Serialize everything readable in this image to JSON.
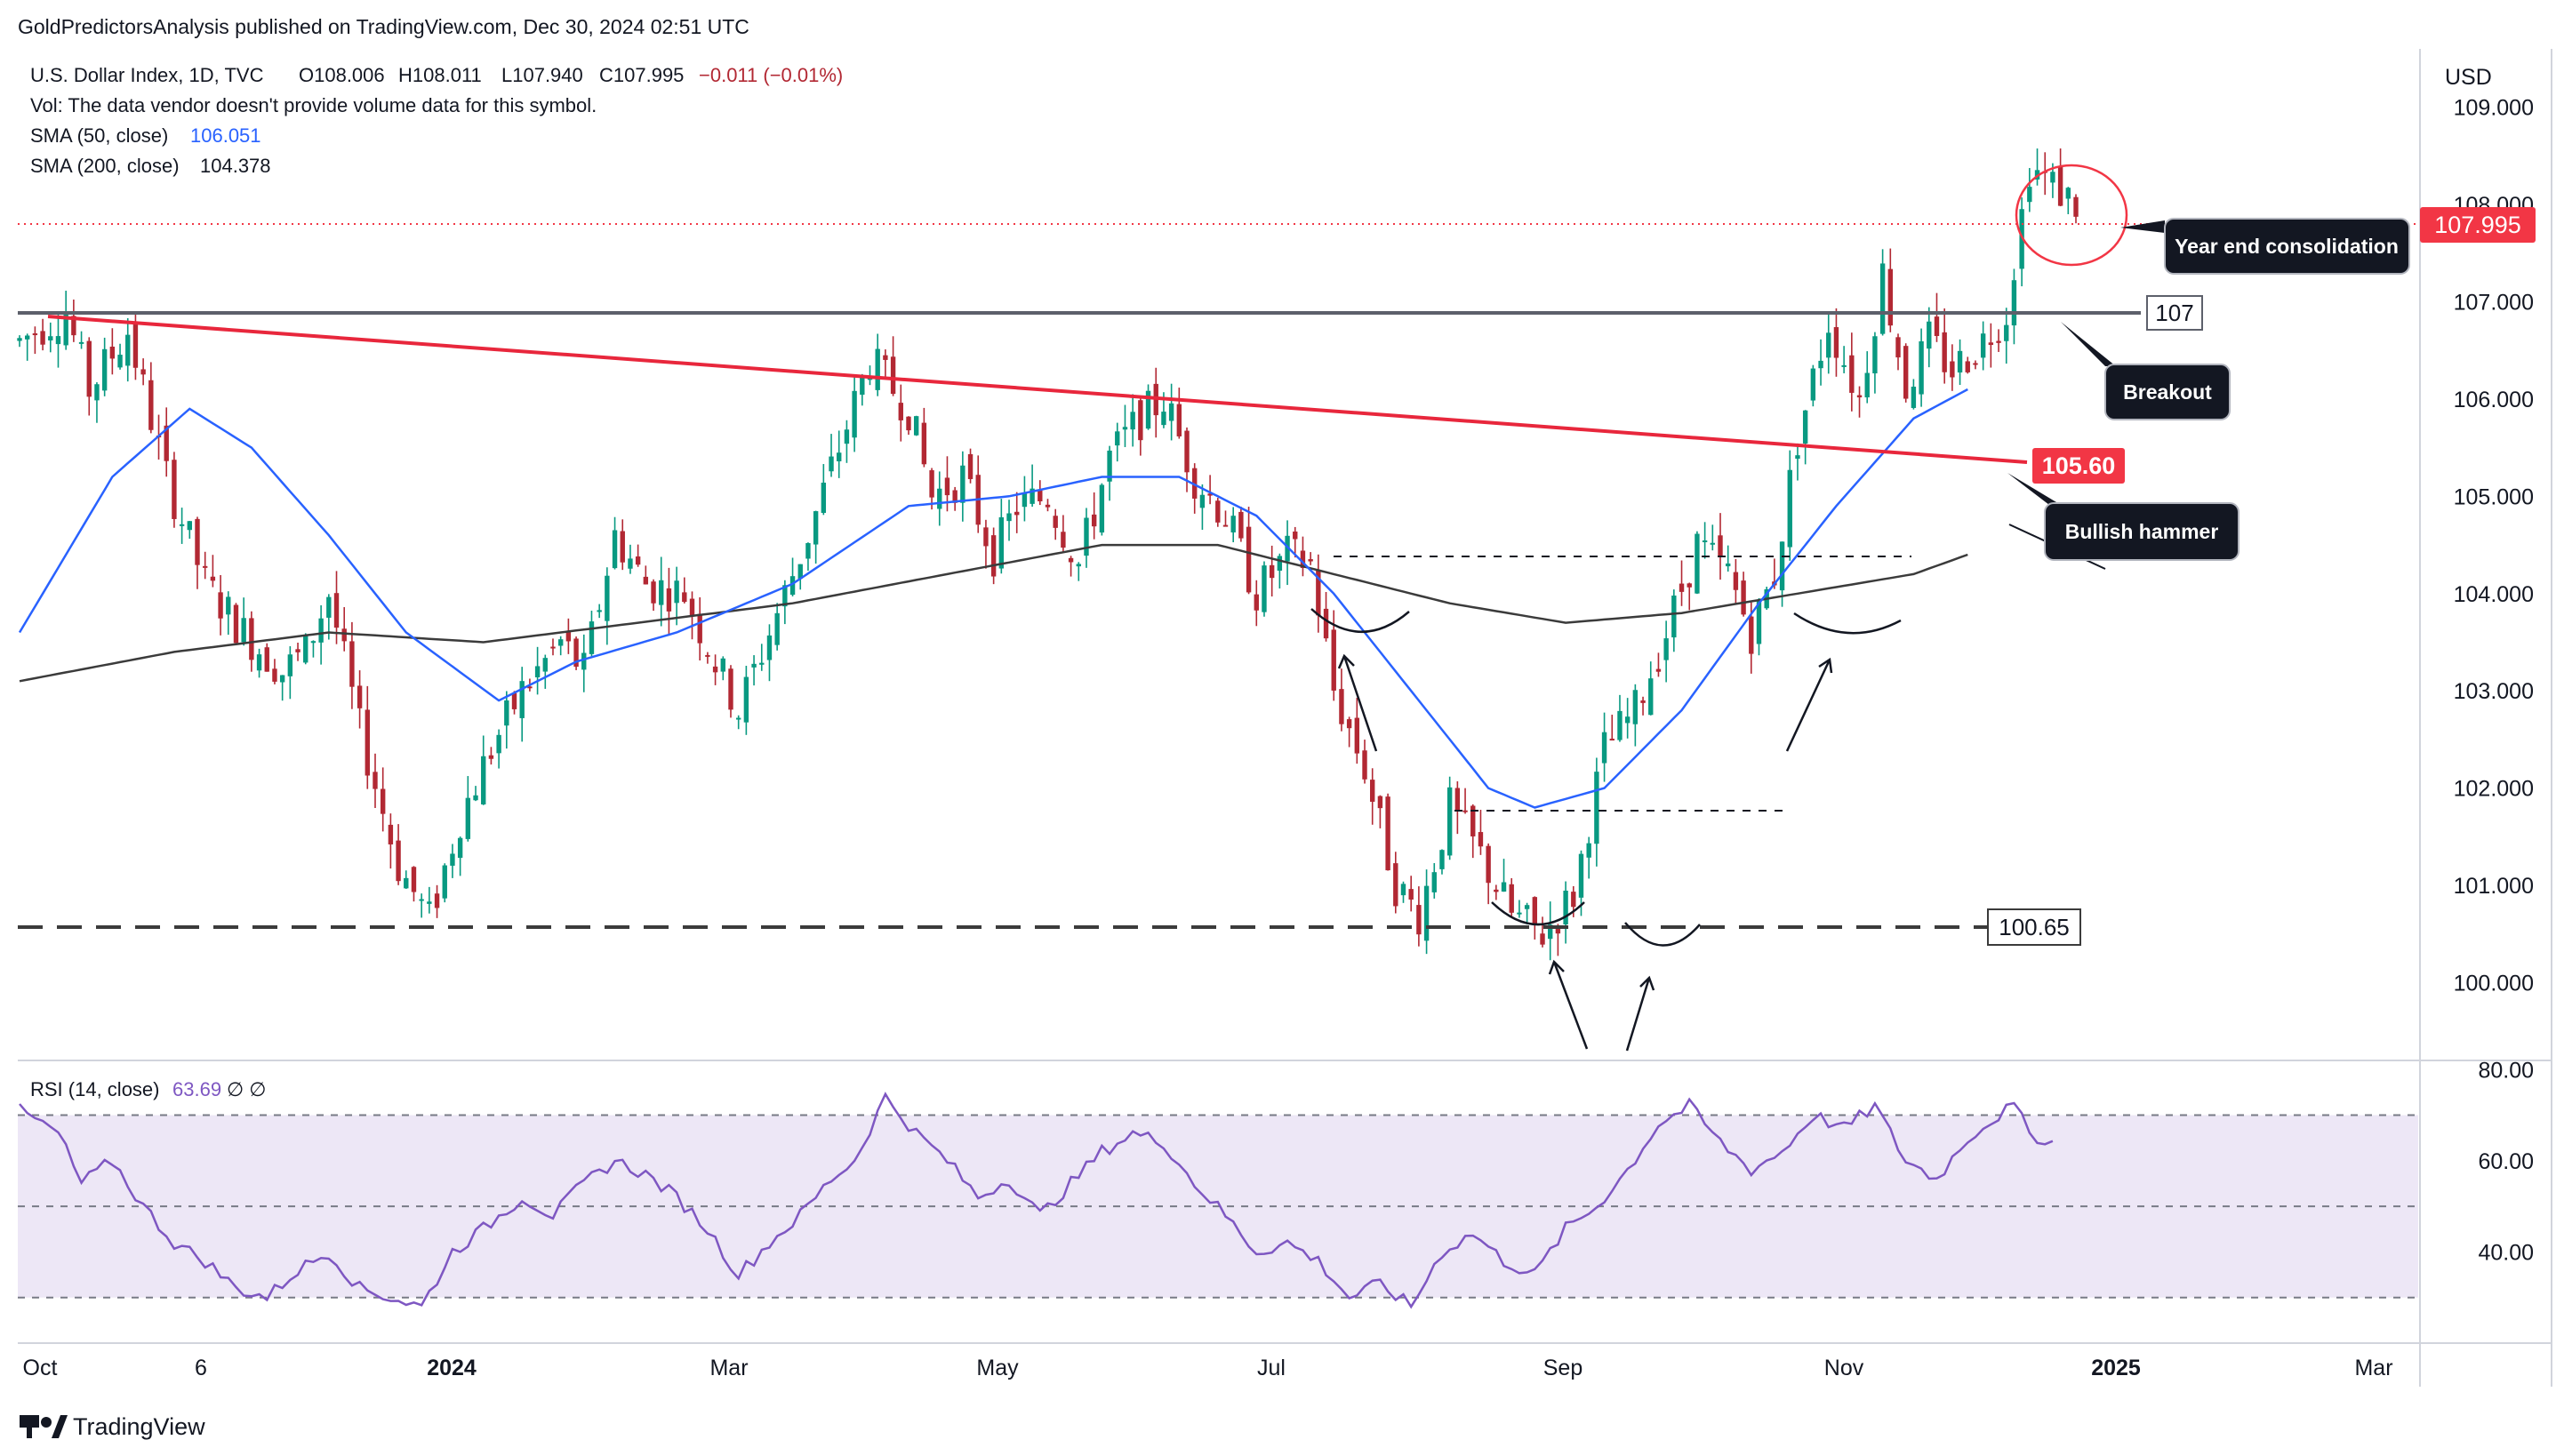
{
  "header": {
    "published_by": "GoldPredictorsAnalysis published on TradingView.com, Dec 30, 2024 02:51 UTC",
    "symbol_line": "U.S. Dollar Index, 1D, TVC",
    "ohlc": {
      "o": "O108.006",
      "h": "H108.011",
      "l": "L107.940",
      "c": "C107.995",
      "chg": "−0.011 (−0.01%)"
    },
    "vol_line": "Vol: The data vendor doesn't provide volume data for this symbol.",
    "sma50_label": "SMA (50, close)",
    "sma50_value": "106.051",
    "sma200_label": "SMA (200, close)",
    "sma200_value": "104.378",
    "rsi_label": "RSI (14, close)",
    "rsi_value": "63.69",
    "rsi_extra": "∅  ∅"
  },
  "footer": {
    "brand": "TradingView"
  },
  "colors": {
    "up": "#089981",
    "down": "#b22833",
    "sma50": "#2962ff",
    "sma200": "#3b3b3b",
    "rsi": "#7e57c2",
    "rsi_band": "#ede7f6",
    "trendline": "#e8273c",
    "price_tag": "#f23645",
    "callout": "#131722"
  },
  "chart_data": {
    "type": "candlestick",
    "title": "U.S. Dollar Index, 1D, TVC",
    "currency": "USD",
    "price_axis": {
      "min": 99.2,
      "max": 109.6,
      "ticks": [
        "109.000",
        "108.000",
        "107.000",
        "106.000",
        "105.000",
        "104.000",
        "103.000",
        "102.000",
        "101.000",
        "100.000"
      ]
    },
    "rsi_axis": {
      "min": 20,
      "max": 82,
      "ticks": [
        "80.00",
        "60.00",
        "40.00"
      ],
      "band": [
        30,
        70
      ],
      "mid": 50
    },
    "time_axis": {
      "ticks": [
        "Oct",
        "6",
        "2024",
        "Mar",
        "May",
        "Jul",
        "Sep",
        "Nov",
        "2025",
        "Mar"
      ]
    },
    "last_price": "107.995",
    "price_path": [
      [
        0,
        106.6
      ],
      [
        6,
        106.9
      ],
      [
        9,
        106.1
      ],
      [
        14,
        106.7
      ],
      [
        19,
        105.2
      ],
      [
        24,
        104.1
      ],
      [
        29,
        103.6
      ],
      [
        34,
        103.2
      ],
      [
        37,
        103.4
      ],
      [
        40,
        104.0
      ],
      [
        44,
        102.6
      ],
      [
        49,
        101.2
      ],
      [
        53,
        100.65
      ],
      [
        57,
        101.7
      ],
      [
        61,
        102.4
      ],
      [
        65,
        103.0
      ],
      [
        70,
        103.5
      ],
      [
        73,
        103.2
      ],
      [
        77,
        104.6
      ],
      [
        81,
        104.1
      ],
      [
        86,
        104.0
      ],
      [
        90,
        103.3
      ],
      [
        93,
        102.8
      ],
      [
        98,
        103.8
      ],
      [
        102,
        104.6
      ],
      [
        106,
        105.5
      ],
      [
        110,
        106.4
      ],
      [
        115,
        105.9
      ],
      [
        118,
        105.0
      ],
      [
        122,
        105.2
      ],
      [
        126,
        104.4
      ],
      [
        129,
        104.9
      ],
      [
        133,
        105.0
      ],
      [
        137,
        104.3
      ],
      [
        141,
        105.4
      ],
      [
        145,
        105.8
      ],
      [
        148,
        106.0
      ],
      [
        152,
        105.2
      ],
      [
        156,
        104.8
      ],
      [
        160,
        104.0
      ],
      [
        164,
        104.4
      ],
      [
        167,
        104.3
      ],
      [
        170,
        103.0
      ],
      [
        174,
        102.2
      ],
      [
        178,
        101.0
      ],
      [
        181,
        100.7
      ],
      [
        185,
        101.8
      ],
      [
        189,
        101.3
      ],
      [
        193,
        100.7
      ],
      [
        197,
        100.5
      ],
      [
        201,
        100.9
      ],
      [
        205,
        102.4
      ],
      [
        209,
        102.8
      ],
      [
        213,
        103.6
      ],
      [
        217,
        104.5
      ],
      [
        221,
        104.2
      ],
      [
        224,
        103.6
      ],
      [
        227,
        104.2
      ],
      [
        230,
        105.6
      ],
      [
        234,
        106.8
      ],
      [
        238,
        106.0
      ],
      [
        241,
        107.3
      ],
      [
        244,
        106.1
      ],
      [
        247,
        106.6
      ],
      [
        250,
        106.3
      ],
      [
        254,
        106.6
      ],
      [
        257,
        106.9
      ],
      [
        260,
        108.4
      ],
      [
        263,
        108.2
      ],
      [
        266,
        108.0
      ]
    ],
    "sma50": [
      [
        0,
        103.6
      ],
      [
        12,
        105.2
      ],
      [
        22,
        105.9
      ],
      [
        30,
        105.5
      ],
      [
        40,
        104.6
      ],
      [
        50,
        103.6
      ],
      [
        62,
        102.9
      ],
      [
        72,
        103.3
      ],
      [
        85,
        103.6
      ],
      [
        100,
        104.1
      ],
      [
        115,
        104.9
      ],
      [
        128,
        105.0
      ],
      [
        140,
        105.2
      ],
      [
        150,
        105.2
      ],
      [
        160,
        104.8
      ],
      [
        170,
        104.0
      ],
      [
        180,
        103.0
      ],
      [
        190,
        102.0
      ],
      [
        196,
        101.8
      ],
      [
        205,
        102.0
      ],
      [
        215,
        102.8
      ],
      [
        225,
        103.9
      ],
      [
        235,
        104.9
      ],
      [
        245,
        105.8
      ],
      [
        252,
        106.1
      ]
    ],
    "sma200": [
      [
        0,
        103.1
      ],
      [
        20,
        103.4
      ],
      [
        40,
        103.6
      ],
      [
        60,
        103.5
      ],
      [
        80,
        103.7
      ],
      [
        100,
        103.9
      ],
      [
        120,
        104.2
      ],
      [
        140,
        104.5
      ],
      [
        155,
        104.5
      ],
      [
        170,
        104.2
      ],
      [
        185,
        103.9
      ],
      [
        200,
        103.7
      ],
      [
        215,
        103.8
      ],
      [
        230,
        104.0
      ],
      [
        245,
        104.2
      ],
      [
        252,
        104.4
      ]
    ],
    "rsi": [
      [
        0,
        71
      ],
      [
        5,
        66
      ],
      [
        8,
        55
      ],
      [
        12,
        60
      ],
      [
        16,
        50
      ],
      [
        20,
        42
      ],
      [
        24,
        38
      ],
      [
        28,
        32
      ],
      [
        32,
        30
      ],
      [
        36,
        36
      ],
      [
        40,
        40
      ],
      [
        44,
        32
      ],
      [
        48,
        30
      ],
      [
        52,
        28
      ],
      [
        56,
        40
      ],
      [
        60,
        45
      ],
      [
        65,
        52
      ],
      [
        69,
        48
      ],
      [
        73,
        55
      ],
      [
        77,
        60
      ],
      [
        81,
        57
      ],
      [
        85,
        52
      ],
      [
        89,
        45
      ],
      [
        93,
        35
      ],
      [
        97,
        42
      ],
      [
        101,
        48
      ],
      [
        105,
        56
      ],
      [
        108,
        60
      ],
      [
        112,
        74
      ],
      [
        116,
        66
      ],
      [
        120,
        60
      ],
      [
        124,
        52
      ],
      [
        128,
        56
      ],
      [
        132,
        48
      ],
      [
        136,
        55
      ],
      [
        140,
        62
      ],
      [
        144,
        66
      ],
      [
        148,
        64
      ],
      [
        152,
        55
      ],
      [
        156,
        48
      ],
      [
        160,
        40
      ],
      [
        164,
        42
      ],
      [
        168,
        38
      ],
      [
        172,
        30
      ],
      [
        176,
        33
      ],
      [
        180,
        28
      ],
      [
        184,
        40
      ],
      [
        188,
        44
      ],
      [
        192,
        38
      ],
      [
        196,
        35
      ],
      [
        200,
        45
      ],
      [
        204,
        50
      ],
      [
        208,
        58
      ],
      [
        212,
        68
      ],
      [
        216,
        72
      ],
      [
        220,
        64
      ],
      [
        224,
        58
      ],
      [
        228,
        62
      ],
      [
        232,
        70
      ],
      [
        236,
        67
      ],
      [
        240,
        72
      ],
      [
        244,
        60
      ],
      [
        248,
        56
      ],
      [
        252,
        65
      ],
      [
        256,
        70
      ],
      [
        258,
        72
      ],
      [
        260,
        66
      ],
      [
        263,
        64
      ]
    ],
    "annotations": {
      "resistance_label": "107",
      "support_label": "100.65",
      "trendline_level": "105.60",
      "callouts": [
        "Year end consolidation",
        "Breakout",
        "Bullish hammer"
      ]
    }
  }
}
